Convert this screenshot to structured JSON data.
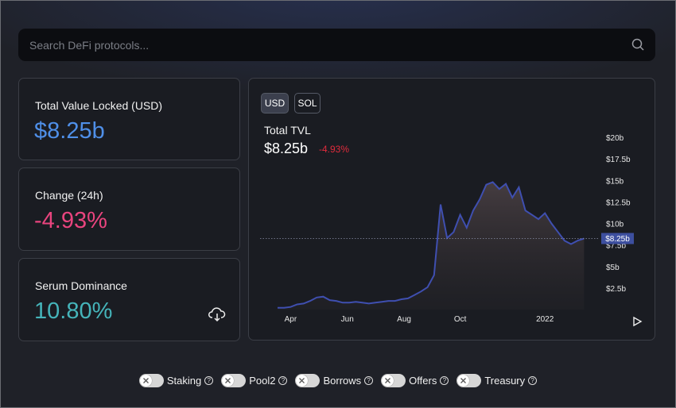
{
  "search": {
    "placeholder": "Search DeFi protocols..."
  },
  "cards": [
    {
      "label": "Total Value Locked (USD)",
      "value": "$8.25b"
    },
    {
      "label": "Change (24h)",
      "value": "-4.93%"
    },
    {
      "label": "Serum Dominance",
      "value": "10.80%"
    }
  ],
  "currency_buttons": [
    "USD",
    "SOL"
  ],
  "chart_data": {
    "type": "area",
    "title": "Total TVL",
    "subtitle": "$8.25b",
    "change": "-4.93%",
    "color": "#3f4fb0",
    "values": [
      0.2,
      0.2,
      0.3,
      0.6,
      0.7,
      1.0,
      1.4,
      1.5,
      1.1,
      1.0,
      0.8,
      0.8,
      0.9,
      0.8,
      0.7,
      0.8,
      0.9,
      1.0,
      1.0,
      1.2,
      1.3,
      1.7,
      2.1,
      2.6,
      4.0,
      12.2,
      8.3,
      9.0,
      11.0,
      9.5,
      11.5,
      12.8,
      14.5,
      14.8,
      14.0,
      14.6,
      13.0,
      14.2,
      11.5,
      11.0,
      10.5,
      11.2,
      10.0,
      9.0,
      8.0,
      7.6,
      8.0,
      8.25
    ],
    "xlim": [
      0,
      47
    ],
    "xticks": [
      {
        "value": 2,
        "label": "Apr"
      },
      {
        "value": 10.7,
        "label": "Jun"
      },
      {
        "value": 19.4,
        "label": "Aug"
      },
      {
        "value": 28,
        "label": "Oct"
      },
      {
        "value": 41,
        "label": "2022"
      }
    ],
    "ylim": [
      0,
      20
    ],
    "yticks": [
      {
        "value": 2.5,
        "label": "$2.5b"
      },
      {
        "value": 5,
        "label": "$5b"
      },
      {
        "value": 7.5,
        "label": "$7.5b"
      },
      {
        "value": 10,
        "label": "$10b"
      },
      {
        "value": 12.5,
        "label": "$12.5b"
      },
      {
        "value": 15,
        "label": "$15b"
      },
      {
        "value": 17.5,
        "label": "$17.5b"
      },
      {
        "value": 20,
        "label": "$20b"
      }
    ],
    "current": {
      "value": 8.25,
      "label": "$8.25b"
    }
  },
  "toggles": [
    "Staking",
    "Pool2",
    "Borrows",
    "Offers",
    "Treasury"
  ]
}
